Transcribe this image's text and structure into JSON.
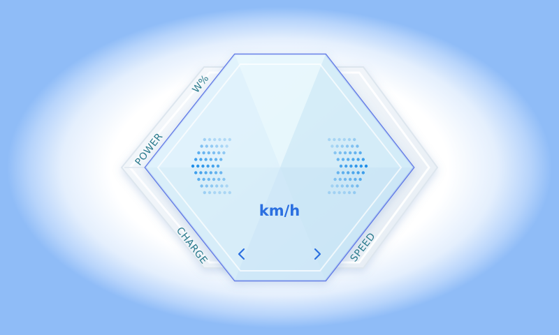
{
  "labels": {
    "power": "POWER",
    "power_unit": "W%",
    "charge": "CHARGE",
    "speed": "SPEED"
  },
  "speed_unit": "km/h",
  "icons": {
    "prev": "chevron-left-icon",
    "next": "chevron-right-icon",
    "left_indicator": "left-arrow-dots-icon",
    "right_indicator": "right-arrow-dots-icon"
  },
  "colors": {
    "accent": "#2b6fe0",
    "label": "#2a7a8c",
    "dot": "#1e8ee8"
  }
}
